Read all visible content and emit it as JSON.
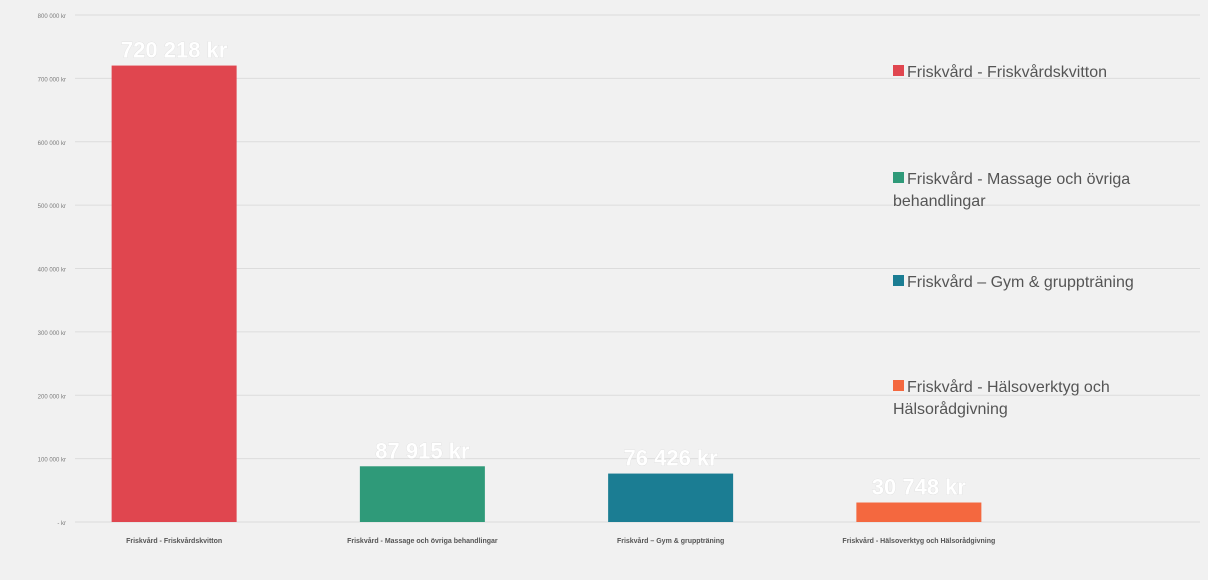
{
  "chart_data": {
    "type": "bar",
    "title": "",
    "xlabel": "",
    "ylabel": "",
    "ylim": [
      0,
      800000
    ],
    "yticks": [
      0,
      100000,
      200000,
      300000,
      400000,
      500000,
      600000,
      700000,
      800000
    ],
    "ytick_labels": [
      "- kr",
      "100 000 kr",
      "200 000 kr",
      "300 000 kr",
      "400 000 kr",
      "500 000 kr",
      "600 000 kr",
      "700 000 kr",
      "800 000 kr"
    ],
    "grid": true,
    "legend_position": "right",
    "categories": [
      "Friskvård - Friskvårdskvitton",
      "Friskvård - Massage och övriga behandlingar",
      "Friskvård – Gym & gruppträning",
      "Friskvård - Hälsoverktyg och Hälsorådgivning"
    ],
    "values": [
      720218,
      87915,
      76426,
      30748
    ],
    "data_labels": [
      "720 218 kr",
      "87 915 kr",
      "76 426 kr",
      "30 748 kr"
    ],
    "colors": [
      "#e0464f",
      "#2f9a79",
      "#1b7d93",
      "#f4683f"
    ],
    "legend": [
      "Friskvård - Friskvårdskvitton",
      "Friskvård - Massage och övriga behandlingar",
      "Friskvård – Gym & gruppträning",
      "Friskvård - Hälsoverktyg och Hälsorådgivning"
    ]
  }
}
